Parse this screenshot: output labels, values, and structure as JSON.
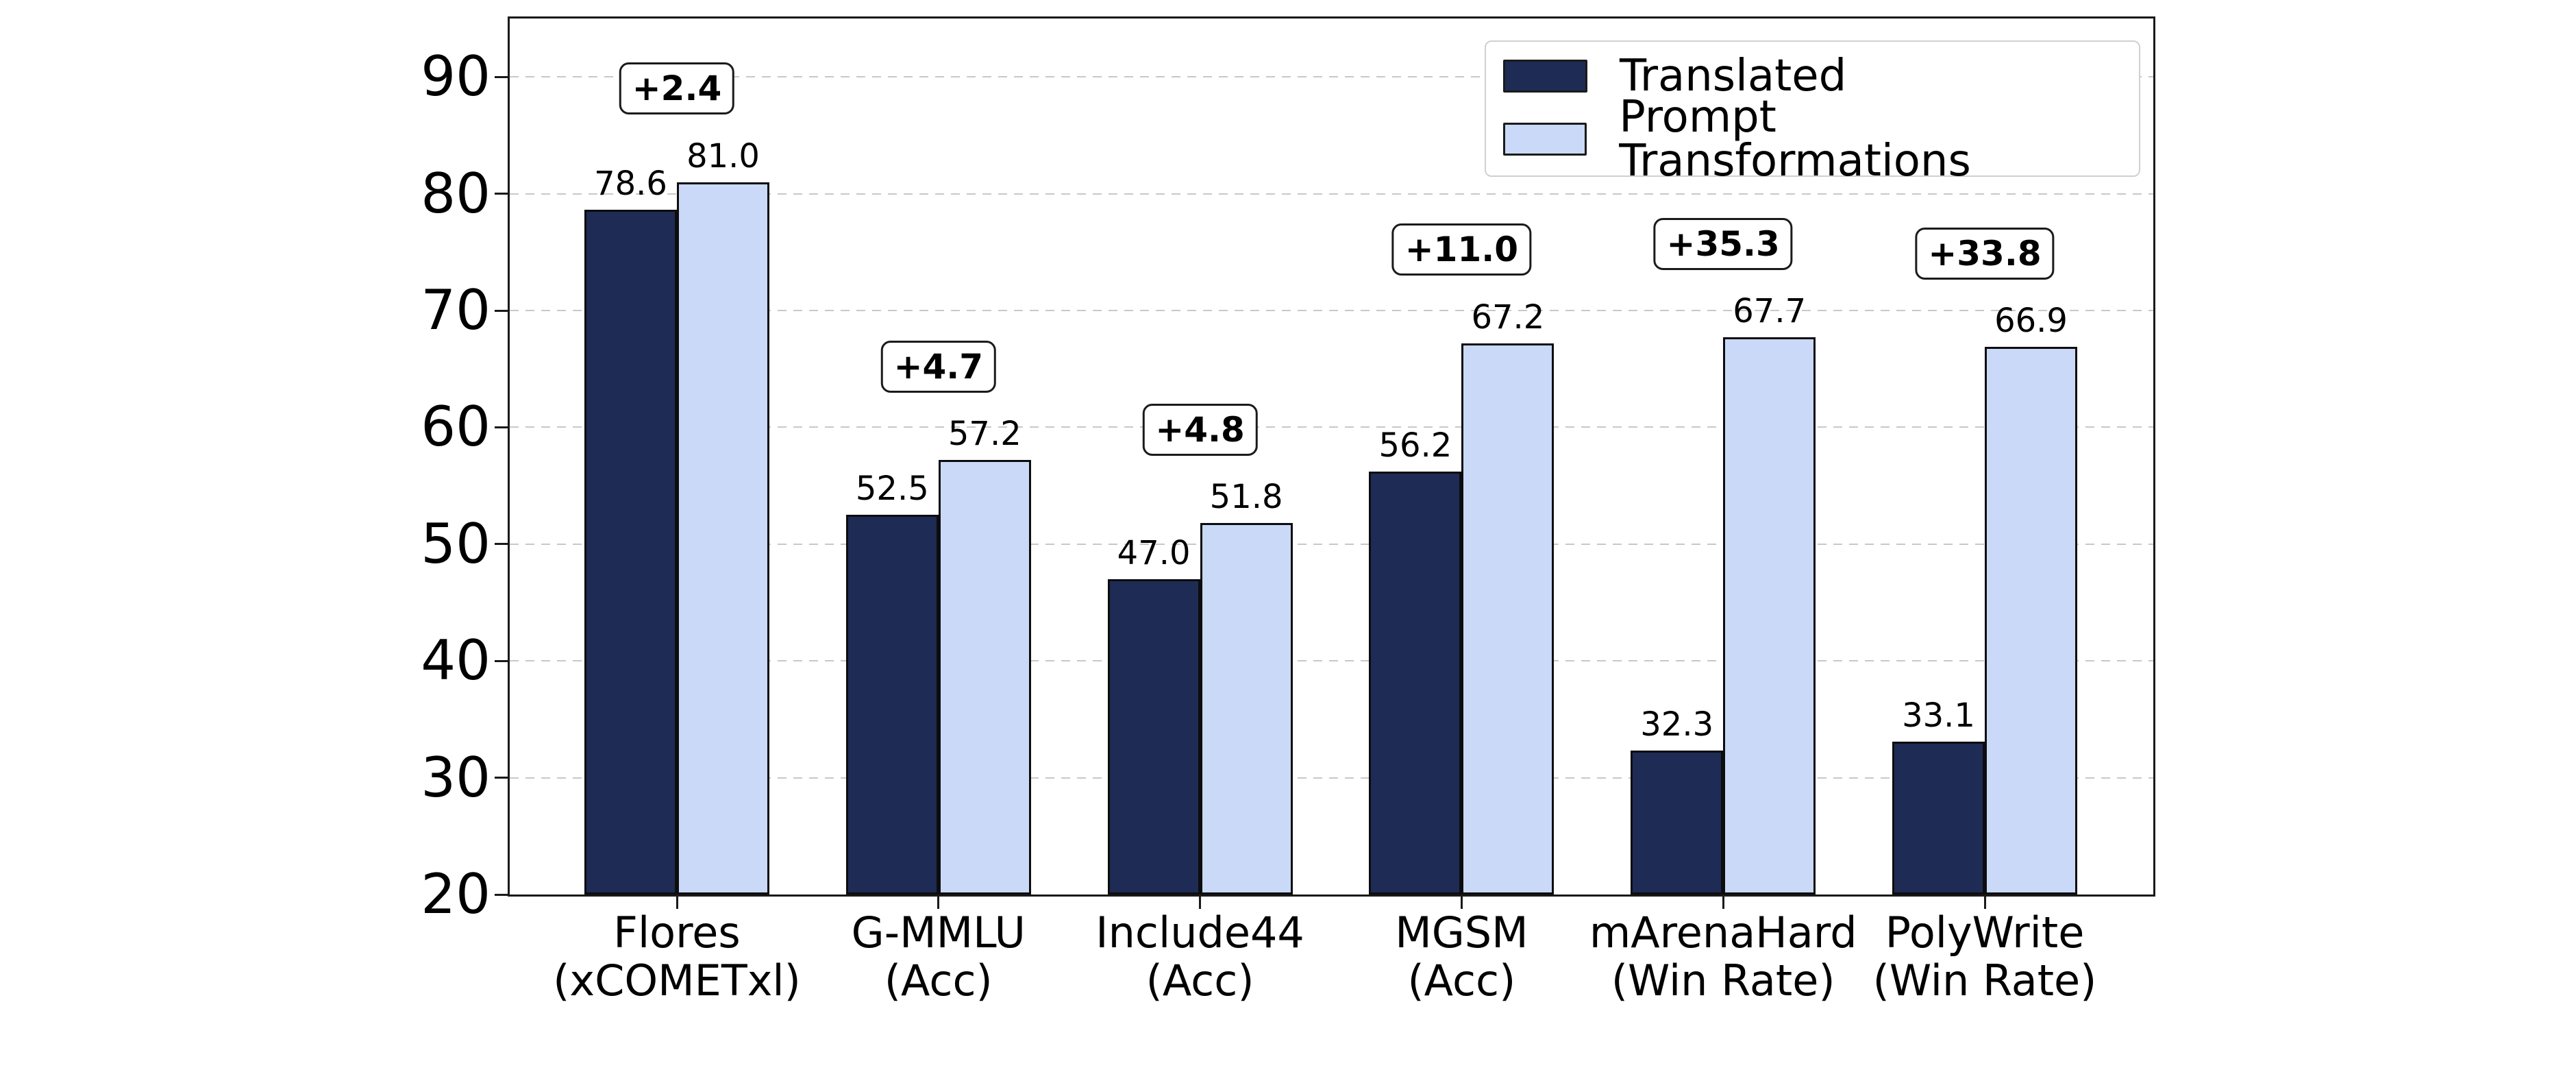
{
  "chart_data": {
    "type": "bar",
    "title": "",
    "categories": [
      {
        "line1": "Flores",
        "line2": "(xCOMETxl)"
      },
      {
        "line1": "G-MMLU",
        "line2": "(Acc)"
      },
      {
        "line1": "Include44",
        "line2": "(Acc)"
      },
      {
        "line1": "MGSM",
        "line2": "(Acc)"
      },
      {
        "line1": "mArenaHard",
        "line2": "(Win Rate)"
      },
      {
        "line1": "PolyWrite",
        "line2": "(Win Rate)"
      }
    ],
    "series": [
      {
        "name": "Translated",
        "color": "#1e2b55",
        "values": [
          78.6,
          52.5,
          47.0,
          56.2,
          32.3,
          33.1
        ]
      },
      {
        "name": "Prompt Transformations",
        "color": "#c9d9f7",
        "values": [
          81.0,
          57.2,
          51.8,
          67.2,
          67.7,
          66.9
        ]
      }
    ],
    "delta_labels": [
      "+2.4",
      "+4.7",
      "+4.8",
      "+11.0",
      "+35.3",
      "+33.8"
    ],
    "yticks": [
      20,
      30,
      40,
      50,
      60,
      70,
      80,
      90
    ],
    "ylim": [
      20,
      95
    ],
    "grid": true,
    "legend": {
      "position": "upper right",
      "items": [
        "Translated",
        "Prompt Transformations"
      ]
    },
    "colors": {
      "bar_edge": "#0d0d0d",
      "gridline": "#c8c8c8",
      "text": "#000000"
    }
  }
}
